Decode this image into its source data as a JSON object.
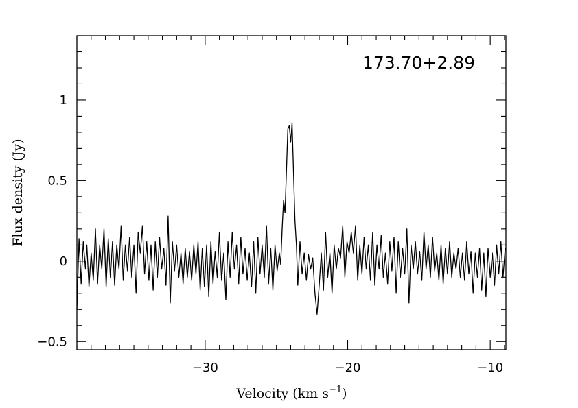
{
  "chart_data": {
    "type": "line",
    "title": "",
    "annotation": "173.70+2.89",
    "xlabel": "Velocity (km s",
    "xlabel_sup": "−1",
    "xlabel_end": ")",
    "ylabel": "Flux density (Jy)",
    "xlim": [
      -39.0,
      -8.9
    ],
    "ylim": [
      -0.55,
      1.4
    ],
    "x_ticks": [
      {
        "value": -30,
        "label": "−30"
      },
      {
        "value": -20,
        "label": "−20"
      },
      {
        "value": -10,
        "label": "−10"
      }
    ],
    "y_ticks": [
      {
        "value": -0.5,
        "label": "−0.5"
      },
      {
        "value": 0,
        "label": "0"
      },
      {
        "value": 0.5,
        "label": "0.5"
      },
      {
        "value": 1,
        "label": "1"
      }
    ],
    "x_minor_step": 1,
    "y_minor_step": 0.1,
    "grid": false,
    "series": [
      {
        "color": "#000000",
        "points": [
          [
            -39.0,
            -0.3
          ],
          [
            -38.85,
            0.14
          ],
          [
            -38.7,
            -0.14
          ],
          [
            -38.55,
            0.12
          ],
          [
            -38.4,
            -0.05
          ],
          [
            -38.3,
            0.1
          ],
          [
            -38.15,
            -0.16
          ],
          [
            -38.0,
            0.05
          ],
          [
            -37.85,
            -0.12
          ],
          [
            -37.7,
            0.2
          ],
          [
            -37.55,
            -0.14
          ],
          [
            -37.4,
            0.1
          ],
          [
            -37.25,
            -0.05
          ],
          [
            -37.1,
            0.2
          ],
          [
            -36.95,
            -0.16
          ],
          [
            -36.8,
            0.14
          ],
          [
            -36.65,
            -0.1
          ],
          [
            -36.5,
            0.12
          ],
          [
            -36.35,
            -0.15
          ],
          [
            -36.2,
            0.1
          ],
          [
            -36.05,
            -0.05
          ],
          [
            -35.9,
            0.22
          ],
          [
            -35.75,
            -0.12
          ],
          [
            -35.6,
            0.1
          ],
          [
            -35.45,
            -0.06
          ],
          [
            -35.3,
            0.15
          ],
          [
            -35.15,
            -0.1
          ],
          [
            -35.0,
            0.1
          ],
          [
            -34.85,
            -0.2
          ],
          [
            -34.7,
            0.18
          ],
          [
            -34.55,
            0.05
          ],
          [
            -34.4,
            0.22
          ],
          [
            -34.25,
            -0.08
          ],
          [
            -34.1,
            0.12
          ],
          [
            -33.95,
            -0.12
          ],
          [
            -33.8,
            0.1
          ],
          [
            -33.65,
            -0.18
          ],
          [
            -33.5,
            0.12
          ],
          [
            -33.35,
            -0.1
          ],
          [
            -33.2,
            0.15
          ],
          [
            -33.05,
            -0.05
          ],
          [
            -32.9,
            0.08
          ],
          [
            -32.75,
            -0.15
          ],
          [
            -32.6,
            0.28
          ],
          [
            -32.45,
            -0.26
          ],
          [
            -32.3,
            0.12
          ],
          [
            -32.15,
            -0.06
          ],
          [
            -32.0,
            0.1
          ],
          [
            -31.85,
            -0.1
          ],
          [
            -31.7,
            0.05
          ],
          [
            -31.55,
            -0.14
          ],
          [
            -31.4,
            0.08
          ],
          [
            -31.25,
            -0.1
          ],
          [
            -31.1,
            0.06
          ],
          [
            -30.95,
            -0.12
          ],
          [
            -30.8,
            0.1
          ],
          [
            -30.65,
            -0.08
          ],
          [
            -30.5,
            0.12
          ],
          [
            -30.35,
            -0.18
          ],
          [
            -30.2,
            0.08
          ],
          [
            -30.05,
            -0.16
          ],
          [
            -29.9,
            0.1
          ],
          [
            -29.75,
            -0.22
          ],
          [
            -29.6,
            0.12
          ],
          [
            -29.45,
            -0.14
          ],
          [
            -29.3,
            0.06
          ],
          [
            -29.15,
            -0.1
          ],
          [
            -29.0,
            0.18
          ],
          [
            -28.85,
            -0.12
          ],
          [
            -28.7,
            0.05
          ],
          [
            -28.55,
            -0.24
          ],
          [
            -28.4,
            0.12
          ],
          [
            -28.25,
            -0.1
          ],
          [
            -28.1,
            0.18
          ],
          [
            -27.95,
            -0.05
          ],
          [
            -27.8,
            0.1
          ],
          [
            -27.65,
            -0.14
          ],
          [
            -27.5,
            0.15
          ],
          [
            -27.35,
            -0.08
          ],
          [
            -27.2,
            0.08
          ],
          [
            -27.05,
            -0.12
          ],
          [
            -26.9,
            0.05
          ],
          [
            -26.75,
            -0.16
          ],
          [
            -26.6,
            0.12
          ],
          [
            -26.45,
            -0.2
          ],
          [
            -26.3,
            0.15
          ],
          [
            -26.15,
            -0.08
          ],
          [
            -26.0,
            0.1
          ],
          [
            -25.85,
            -0.1
          ],
          [
            -25.7,
            0.22
          ],
          [
            -25.55,
            -0.14
          ],
          [
            -25.4,
            0.08
          ],
          [
            -25.25,
            -0.18
          ],
          [
            -25.1,
            0.1
          ],
          [
            -24.95,
            -0.06
          ],
          [
            -24.8,
            0.05
          ],
          [
            -24.7,
            -0.02
          ],
          [
            -24.6,
            0.2
          ],
          [
            -24.5,
            0.38
          ],
          [
            -24.4,
            0.3
          ],
          [
            -24.3,
            0.55
          ],
          [
            -24.2,
            0.82
          ],
          [
            -24.1,
            0.84
          ],
          [
            -24.0,
            0.74
          ],
          [
            -23.9,
            0.86
          ],
          [
            -23.8,
            0.55
          ],
          [
            -23.7,
            0.25
          ],
          [
            -23.6,
            0.1
          ],
          [
            -23.5,
            -0.15
          ],
          [
            -23.35,
            0.12
          ],
          [
            -23.2,
            -0.08
          ],
          [
            -23.05,
            0.05
          ],
          [
            -22.9,
            -0.12
          ],
          [
            -22.75,
            0.04
          ],
          [
            -22.6,
            -0.05
          ],
          [
            -22.45,
            0.02
          ],
          [
            -22.3,
            -0.2
          ],
          [
            -22.15,
            -0.33
          ],
          [
            -22.0,
            -0.15
          ],
          [
            -21.85,
            0.05
          ],
          [
            -21.7,
            -0.18
          ],
          [
            -21.55,
            0.18
          ],
          [
            -21.4,
            -0.1
          ],
          [
            -21.25,
            0.05
          ],
          [
            -21.1,
            -0.2
          ],
          [
            -20.95,
            0.1
          ],
          [
            -20.8,
            -0.05
          ],
          [
            -20.65,
            0.08
          ],
          [
            -20.5,
            0.02
          ],
          [
            -20.35,
            0.22
          ],
          [
            -20.2,
            -0.1
          ],
          [
            -20.05,
            0.12
          ],
          [
            -19.9,
            0.05
          ],
          [
            -19.75,
            0.18
          ],
          [
            -19.6,
            0.05
          ],
          [
            -19.45,
            0.22
          ],
          [
            -19.3,
            -0.12
          ],
          [
            -19.15,
            0.1
          ],
          [
            -19.0,
            -0.08
          ],
          [
            -18.85,
            0.15
          ],
          [
            -18.7,
            -0.05
          ],
          [
            -18.55,
            0.1
          ],
          [
            -18.4,
            -0.12
          ],
          [
            -18.25,
            0.18
          ],
          [
            -18.1,
            -0.15
          ],
          [
            -17.95,
            0.1
          ],
          [
            -17.8,
            -0.05
          ],
          [
            -17.65,
            0.16
          ],
          [
            -17.5,
            -0.1
          ],
          [
            -17.35,
            0.05
          ],
          [
            -17.2,
            -0.14
          ],
          [
            -17.05,
            0.12
          ],
          [
            -16.9,
            -0.06
          ],
          [
            -16.75,
            0.15
          ],
          [
            -16.6,
            -0.2
          ],
          [
            -16.45,
            0.12
          ],
          [
            -16.3,
            -0.1
          ],
          [
            -16.15,
            0.08
          ],
          [
            -16.0,
            -0.08
          ],
          [
            -15.85,
            0.2
          ],
          [
            -15.7,
            -0.26
          ],
          [
            -15.55,
            0.1
          ],
          [
            -15.4,
            -0.05
          ],
          [
            -15.25,
            0.12
          ],
          [
            -15.1,
            -0.08
          ],
          [
            -14.95,
            0.06
          ],
          [
            -14.8,
            -0.12
          ],
          [
            -14.65,
            0.18
          ],
          [
            -14.5,
            -0.05
          ],
          [
            -14.35,
            0.1
          ],
          [
            -14.2,
            -0.1
          ],
          [
            -14.05,
            0.15
          ],
          [
            -13.9,
            -0.06
          ],
          [
            -13.75,
            0.05
          ],
          [
            -13.6,
            -0.12
          ],
          [
            -13.45,
            0.1
          ],
          [
            -13.3,
            -0.14
          ],
          [
            -13.15,
            0.08
          ],
          [
            -13.0,
            -0.08
          ],
          [
            -12.85,
            0.12
          ],
          [
            -12.7,
            -0.1
          ],
          [
            -12.55,
            0.05
          ],
          [
            -12.4,
            -0.05
          ],
          [
            -12.25,
            0.08
          ],
          [
            -12.1,
            -0.1
          ],
          [
            -11.95,
            0.05
          ],
          [
            -11.8,
            -0.12
          ],
          [
            -11.65,
            0.12
          ],
          [
            -11.5,
            -0.08
          ],
          [
            -11.35,
            0.06
          ],
          [
            -11.2,
            -0.2
          ],
          [
            -11.05,
            0.05
          ],
          [
            -10.9,
            -0.1
          ],
          [
            -10.75,
            0.08
          ],
          [
            -10.6,
            -0.18
          ],
          [
            -10.45,
            0.05
          ],
          [
            -10.3,
            -0.22
          ],
          [
            -10.15,
            0.08
          ],
          [
            -10.0,
            -0.1
          ],
          [
            -9.85,
            0.05
          ],
          [
            -9.7,
            -0.15
          ],
          [
            -9.55,
            0.1
          ],
          [
            -9.4,
            -0.08
          ],
          [
            -9.25,
            0.12
          ],
          [
            -9.1,
            -0.1
          ],
          [
            -8.95,
            0.08
          ]
        ]
      }
    ]
  }
}
